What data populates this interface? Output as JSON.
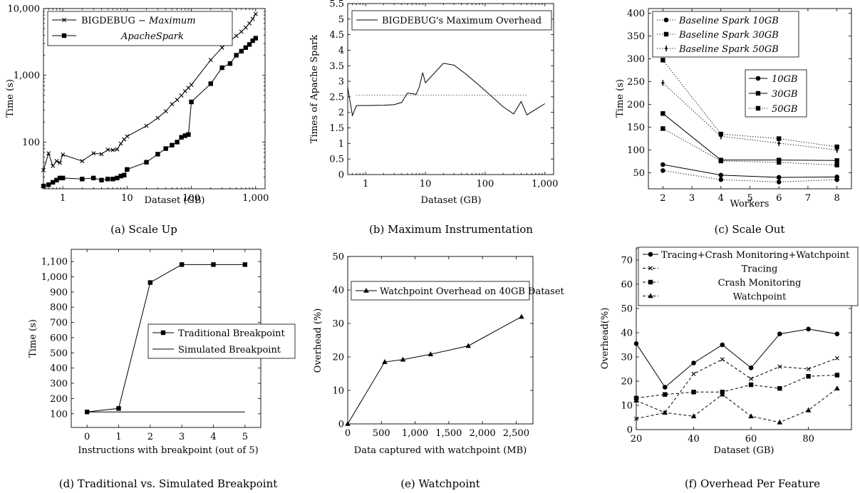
{
  "chart_data": [
    {
      "id": "a",
      "type": "line",
      "caption": "(a) Scale Up",
      "xlabel": "Dataset (GB)",
      "ylabel": "Time (s)",
      "xscale": "log",
      "yscale": "log",
      "xlim": [
        0.5,
        1400
      ],
      "ylim": [
        20,
        10000
      ],
      "xticks": [
        1,
        10,
        100,
        1000
      ],
      "xticklabels": [
        "1",
        "10",
        "100",
        "1,000"
      ],
      "yticks": [
        100,
        1000,
        10000
      ],
      "yticklabels": [
        "100",
        "1,000",
        "10,000"
      ],
      "legend_position": "top-left",
      "series": [
        {
          "name": "BIGDEBUG − Maximum",
          "name_parts": [
            "BIGDEBUG − ",
            "Maximum"
          ],
          "marker": "x",
          "line": "solid",
          "x": [
            0.5,
            0.6,
            0.7,
            0.8,
            0.9,
            1,
            2,
            3,
            4,
            5,
            6,
            7,
            8,
            9,
            10,
            20,
            30,
            40,
            50,
            60,
            70,
            80,
            90,
            100,
            200,
            300,
            400,
            500,
            600,
            700,
            800,
            900,
            1000
          ],
          "y": [
            38,
            68,
            44,
            52,
            49,
            65,
            52,
            68,
            66,
            77,
            76,
            78,
            95,
            110,
            122,
            175,
            230,
            290,
            370,
            430,
            500,
            580,
            650,
            720,
            1700,
            2600,
            3300,
            3900,
            4500,
            5200,
            6000,
            7000,
            8300
          ]
        },
        {
          "name": "ApacheSpark",
          "name_parts": [
            "",
            "ApacheSpark"
          ],
          "marker": "square",
          "line": "solid",
          "x": [
            0.5,
            0.6,
            0.7,
            0.8,
            0.9,
            1,
            2,
            3,
            4,
            5,
            6,
            7,
            8,
            9,
            10,
            20,
            30,
            40,
            50,
            60,
            70,
            80,
            90,
            100,
            200,
            300,
            400,
            500,
            600,
            700,
            800,
            900,
            1000
          ],
          "y": [
            22,
            23,
            25,
            27,
            29,
            29,
            28,
            29,
            27,
            28,
            28,
            29,
            31,
            32,
            39,
            50,
            66,
            80,
            90,
            100,
            118,
            125,
            130,
            400,
            750,
            1300,
            1500,
            2000,
            2300,
            2600,
            2900,
            3300,
            3600
          ]
        }
      ]
    },
    {
      "id": "b",
      "type": "line",
      "caption": "(b) Maximum Instrumentation",
      "xlabel": "Dataset (GB)",
      "ylabel": "Times of Apache Spark",
      "xscale": "log",
      "yscale": "linear",
      "xlim": [
        0.5,
        1400
      ],
      "ylim": [
        0,
        5.5
      ],
      "xticks": [
        1,
        10,
        100,
        1000
      ],
      "xticklabels": [
        "1",
        "10",
        "100",
        "1,000"
      ],
      "yticks": [
        0,
        0.5,
        1,
        1.5,
        2,
        2.5,
        3,
        3.5,
        4,
        4.5,
        5,
        5.5
      ],
      "yticklabels": [
        "0",
        "0.5",
        "1",
        "1.5",
        "2",
        "2.5",
        "3",
        "3.5",
        "4",
        "4.5",
        "5",
        "5.5"
      ],
      "legend_position": "top",
      "reference_line": {
        "y": 2.55,
        "x": [
          0.5,
          500
        ],
        "style": "dotted"
      },
      "series": [
        {
          "name": "BIGDEBUG's Maximum Overhead",
          "marker": "none",
          "line": "solid",
          "x": [
            0.5,
            0.6,
            0.7,
            1,
            2,
            3,
            4,
            5,
            6,
            7,
            8,
            9,
            10,
            20,
            30,
            50,
            100,
            200,
            300,
            400,
            500,
            1000
          ],
          "y": [
            2.8,
            1.9,
            2.22,
            2.22,
            2.23,
            2.25,
            2.32,
            2.62,
            2.6,
            2.58,
            2.85,
            3.28,
            2.95,
            3.58,
            3.52,
            3.2,
            2.7,
            2.18,
            1.95,
            2.35,
            1.92,
            2.28
          ]
        }
      ]
    },
    {
      "id": "c",
      "type": "line",
      "caption": "(c) Scale Out",
      "xlabel": "Workers",
      "ylabel": "Time (s)",
      "xscale": "linear",
      "yscale": "linear",
      "xlim": [
        1.5,
        8.5
      ],
      "ylim": [
        15,
        410
      ],
      "xticks": [
        2,
        3,
        4,
        5,
        6,
        7,
        8
      ],
      "xticklabels": [
        "2",
        "3",
        "4",
        "5",
        "6",
        "7",
        "8"
      ],
      "yticks": [
        50,
        100,
        150,
        200,
        250,
        300,
        350,
        400
      ],
      "yticklabels": [
        "50",
        "100",
        "150",
        "200",
        "250",
        "300",
        "350",
        "400"
      ],
      "legend_position": "top-left",
      "series": [
        {
          "name": "Baseline Spark 10GB",
          "legend": 1,
          "marker": "circle",
          "line": "dotted",
          "x": [
            2,
            4,
            6,
            8
          ],
          "y": [
            55,
            35,
            30,
            35
          ]
        },
        {
          "name": "Baseline Spark 30GB",
          "legend": 1,
          "marker": "square",
          "line": "dotted",
          "x": [
            2,
            4,
            6,
            8
          ],
          "y": [
            147,
            76,
            73,
            67
          ]
        },
        {
          "name": "Baseline Spark 50GB",
          "legend": 1,
          "marker": "plus",
          "line": "dotted",
          "x": [
            2,
            4,
            6,
            8
          ],
          "y": [
            247,
            130,
            115,
            100
          ]
        },
        {
          "name": "10GB",
          "legend": 2,
          "marker": "circle",
          "line": "solid",
          "x": [
            2,
            4,
            6,
            8
          ],
          "y": [
            68,
            45,
            40,
            41
          ]
        },
        {
          "name": "30GB",
          "legend": 2,
          "marker": "square",
          "line": "solid",
          "x": [
            2,
            4,
            6,
            8
          ],
          "y": [
            180,
            78,
            78,
            77
          ]
        },
        {
          "name": "50GB",
          "legend": 2,
          "marker": "square",
          "line": "dotted",
          "x": [
            2,
            4,
            6,
            8
          ],
          "y": [
            297,
            135,
            125,
            107
          ]
        }
      ]
    },
    {
      "id": "d",
      "type": "line",
      "caption": "(d) Traditional vs. Simulated Breakpoint",
      "xlabel": "Instructions with breakpoint (out of 5)",
      "ylabel": "Time (s)",
      "xscale": "linear",
      "yscale": "linear",
      "xlim": [
        -0.5,
        5.5
      ],
      "ylim": [
        10,
        1180
      ],
      "xticks": [
        0,
        1,
        2,
        3,
        4,
        5
      ],
      "xticklabels": [
        "0",
        "1",
        "2",
        "3",
        "4",
        "5"
      ],
      "yticks": [
        100,
        200,
        300,
        400,
        500,
        600,
        700,
        800,
        900,
        1000,
        1100
      ],
      "yticklabels": [
        "100",
        "200",
        "300",
        "400",
        "500",
        "600",
        "700",
        "800",
        "900",
        "1,000",
        "1,100"
      ],
      "legend_position": "center-right",
      "series": [
        {
          "name": "Traditional Breakpoint",
          "marker": "square",
          "line": "solid",
          "x": [
            0,
            1,
            2,
            3,
            4,
            5
          ],
          "y": [
            112,
            135,
            962,
            1080,
            1080,
            1080
          ]
        },
        {
          "name": "Simulated Breakpoint",
          "marker": "none",
          "line": "solid",
          "x": [
            0,
            1,
            2,
            3,
            4,
            5
          ],
          "y": [
            112,
            112,
            112,
            112,
            112,
            112
          ]
        }
      ]
    },
    {
      "id": "e",
      "type": "line",
      "caption": "(e) Watchpoint",
      "xlabel": "Data captured with watchpoint (MB)",
      "ylabel": "Overhead (%)",
      "xscale": "linear",
      "yscale": "linear",
      "xlim": [
        0,
        2750
      ],
      "ylim": [
        0,
        50
      ],
      "xticks": [
        0,
        500,
        1000,
        1500,
        2000,
        2500
      ],
      "xticklabels": [
        "0",
        "500",
        "1,000",
        "1,500",
        "2,000",
        "2,500"
      ],
      "yticks": [
        0,
        10,
        20,
        30,
        40,
        50
      ],
      "yticklabels": [
        "0",
        "10",
        "20",
        "30",
        "40",
        "50"
      ],
      "legend_position": "top",
      "series": [
        {
          "name": "Watchpoint Overhead on 40GB Dataset",
          "marker": "triangle",
          "line": "solid",
          "x": [
            0,
            550,
            820,
            1230,
            1790,
            2580
          ],
          "y": [
            0,
            18.5,
            19.2,
            20.8,
            23.3,
            32
          ]
        }
      ]
    },
    {
      "id": "f",
      "type": "line",
      "caption": "(f) Overhead Per Feature",
      "xlabel": "Dataset (GB)",
      "ylabel": "Overhead(%)",
      "xscale": "linear",
      "yscale": "linear",
      "xlim": [
        20,
        95
      ],
      "ylim": [
        0,
        75
      ],
      "xticks": [
        20,
        40,
        60,
        80
      ],
      "xticklabels": [
        "20",
        "40",
        "60",
        "80"
      ],
      "yticks": [
        0,
        10,
        20,
        30,
        40,
        50,
        60,
        70
      ],
      "yticklabels": [
        "0",
        "10",
        "20",
        "30",
        "40",
        "50",
        "60",
        "70"
      ],
      "legend_position": "top",
      "series": [
        {
          "name": "Tracing+Crash Monitoring+Watchpoint",
          "marker": "circle",
          "line": "solid",
          "x": [
            20,
            30,
            40,
            50,
            60,
            70,
            80,
            90
          ],
          "y": [
            35.5,
            17.5,
            27.5,
            35,
            25.5,
            39.5,
            41.5,
            39.5
          ]
        },
        {
          "name": "Tracing",
          "marker": "x",
          "line": "dashed",
          "x": [
            20,
            30,
            40,
            50,
            60,
            70,
            80,
            90
          ],
          "y": [
            4.5,
            7,
            23,
            29,
            21,
            26,
            25,
            29.5
          ]
        },
        {
          "name": "Crash Monitoring",
          "marker": "square",
          "line": "dashed",
          "x": [
            20,
            30,
            40,
            50,
            60,
            70,
            80,
            90
          ],
          "y": [
            13,
            14.5,
            15.5,
            15.5,
            18.5,
            17,
            22,
            22.5
          ]
        },
        {
          "name": "Watchpoint",
          "marker": "triangle",
          "line": "dashed",
          "x": [
            20,
            30,
            40,
            50,
            60,
            70,
            80,
            90
          ],
          "y": [
            12,
            7,
            5.5,
            14.5,
            5.5,
            3,
            8,
            17
          ]
        }
      ]
    }
  ]
}
